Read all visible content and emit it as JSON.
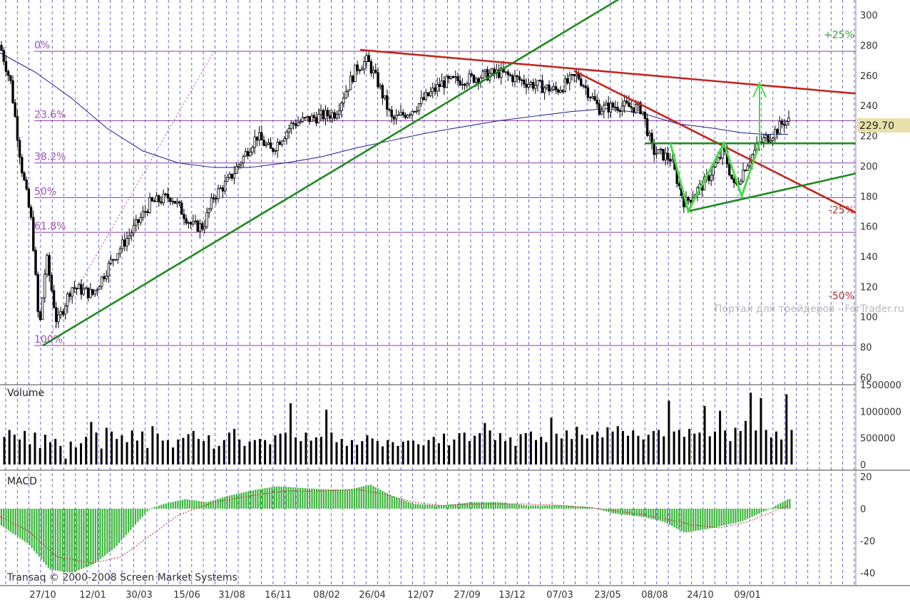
{
  "chart_data": {
    "type": "candlestick",
    "price_panel": {
      "ylim": [
        55,
        310
      ],
      "y_ticks": [
        60,
        80,
        100,
        120,
        140,
        160,
        180,
        200,
        220,
        240,
        260,
        280,
        300
      ],
      "last_price_label": "229.70",
      "fib_levels": [
        {
          "label": "0%",
          "value": 276
        },
        {
          "label": "23.6%",
          "value": 230
        },
        {
          "label": "38.2%",
          "value": 202
        },
        {
          "label": "50%",
          "value": 179
        },
        {
          "label": "61.8%",
          "value": 156
        },
        {
          "label": "100%",
          "value": 81
        }
      ],
      "percent_labels": [
        {
          "label": "+25%",
          "value": 287,
          "color": "#3aa03a"
        },
        {
          "label": "-25%",
          "value": 171,
          "color": "#b03030"
        },
        {
          "label": "-50%",
          "value": 114,
          "color": "#b03030"
        }
      ],
      "watermark": "Портал для трейдеров - ForTrader.ru",
      "close_series": [
        {
          "t": 0,
          "c": 280
        },
        {
          "t": 15,
          "c": 255
        },
        {
          "t": 30,
          "c": 200
        },
        {
          "t": 45,
          "c": 160
        },
        {
          "t": 55,
          "c": 90
        },
        {
          "t": 65,
          "c": 140
        },
        {
          "t": 80,
          "c": 95
        },
        {
          "t": 100,
          "c": 120
        },
        {
          "t": 130,
          "c": 115
        },
        {
          "t": 160,
          "c": 140
        },
        {
          "t": 190,
          "c": 160
        },
        {
          "t": 210,
          "c": 175
        },
        {
          "t": 240,
          "c": 180
        },
        {
          "t": 270,
          "c": 160
        },
        {
          "t": 285,
          "c": 160
        },
        {
          "t": 300,
          "c": 180
        },
        {
          "t": 320,
          "c": 190
        },
        {
          "t": 340,
          "c": 205
        },
        {
          "t": 360,
          "c": 220
        },
        {
          "t": 380,
          "c": 210
        },
        {
          "t": 410,
          "c": 228
        },
        {
          "t": 440,
          "c": 232
        },
        {
          "t": 470,
          "c": 235
        },
        {
          "t": 500,
          "c": 265
        },
        {
          "t": 515,
          "c": 270
        },
        {
          "t": 530,
          "c": 255
        },
        {
          "t": 550,
          "c": 230
        },
        {
          "t": 580,
          "c": 238
        },
        {
          "t": 620,
          "c": 255
        },
        {
          "t": 660,
          "c": 258
        },
        {
          "t": 700,
          "c": 262
        },
        {
          "t": 740,
          "c": 255
        },
        {
          "t": 780,
          "c": 250
        },
        {
          "t": 810,
          "c": 260
        },
        {
          "t": 840,
          "c": 238
        },
        {
          "t": 870,
          "c": 240
        },
        {
          "t": 900,
          "c": 238
        },
        {
          "t": 915,
          "c": 210
        },
        {
          "t": 940,
          "c": 205
        },
        {
          "t": 960,
          "c": 175
        },
        {
          "t": 990,
          "c": 190
        },
        {
          "t": 1015,
          "c": 210
        },
        {
          "t": 1030,
          "c": 185
        },
        {
          "t": 1045,
          "c": 200
        },
        {
          "t": 1065,
          "c": 215
        },
        {
          "t": 1085,
          "c": 222
        },
        {
          "t": 1100,
          "c": 229.7
        }
      ],
      "ma_series": [
        {
          "t": 0,
          "v": 275
        },
        {
          "t": 50,
          "v": 262
        },
        {
          "t": 100,
          "v": 245
        },
        {
          "t": 150,
          "v": 225
        },
        {
          "t": 200,
          "v": 210
        },
        {
          "t": 250,
          "v": 202
        },
        {
          "t": 300,
          "v": 199
        },
        {
          "t": 350,
          "v": 199
        },
        {
          "t": 400,
          "v": 202
        },
        {
          "t": 450,
          "v": 206
        },
        {
          "t": 500,
          "v": 212
        },
        {
          "t": 550,
          "v": 217
        },
        {
          "t": 600,
          "v": 222
        },
        {
          "t": 650,
          "v": 226
        },
        {
          "t": 700,
          "v": 230
        },
        {
          "t": 750,
          "v": 233
        },
        {
          "t": 800,
          "v": 236
        },
        {
          "t": 850,
          "v": 238
        },
        {
          "t": 900,
          "v": 235
        },
        {
          "t": 950,
          "v": 228
        },
        {
          "t": 1000,
          "v": 225
        },
        {
          "t": 1040,
          "v": 222
        },
        {
          "t": 1070,
          "v": 221
        },
        {
          "t": 1105,
          "v": 221
        }
      ],
      "trendlines": [
        {
          "color": "#1e8a1e",
          "points": [
            [
              60,
              81
            ],
            [
              880,
              314
            ]
          ]
        },
        {
          "color": "#c0281e",
          "points": [
            [
              505,
              277
            ],
            [
              1200,
              248
            ]
          ]
        },
        {
          "color": "#c0281e",
          "points": [
            [
              805,
              263
            ],
            [
              1200,
              169
            ]
          ]
        },
        {
          "color": "#1e8a1e",
          "points": [
            [
              965,
              170
            ],
            [
              1200,
              195
            ]
          ]
        },
        {
          "color": "#1e8a1e",
          "points": [
            [
              905,
              215
            ],
            [
              1200,
              215
            ]
          ]
        }
      ],
      "pattern": [
        [
          940,
          215
        ],
        [
          965,
          170
        ],
        [
          1015,
          215
        ],
        [
          1040,
          180
        ],
        [
          1065,
          215
        ]
      ],
      "target_arrow": [
        [
          1065,
          215
        ],
        [
          1065,
          255
        ]
      ]
    },
    "volume_panel": {
      "label": "Volume",
      "ylim": [
        0,
        1500000
      ],
      "y_ticks": [
        0,
        500000,
        1000000,
        1500000
      ],
      "values": [
        520000,
        650000,
        560000,
        470000,
        630000,
        380000,
        600000,
        310000,
        560000,
        420000,
        480000,
        350000,
        110000,
        430000,
        320000,
        400000,
        520000,
        800000,
        600000,
        300000,
        690000,
        620000,
        480000,
        550000,
        420000,
        640000,
        450000,
        620000,
        310000,
        720000,
        580000,
        450000,
        460000,
        320000,
        470000,
        500000,
        570000,
        630000,
        480000,
        440000,
        550000,
        300000,
        350000,
        460000,
        600000,
        670000,
        470000,
        350000,
        430000,
        460000,
        480000,
        460000,
        380000,
        550000,
        580000,
        600000,
        1150000,
        510000,
        440000,
        600000,
        450000,
        510000,
        520000,
        1030000,
        600000,
        420000,
        480000,
        350000,
        460000,
        370000,
        440000,
        550000,
        490000,
        440000,
        340000,
        460000,
        420000,
        350000,
        430000,
        450000,
        450000,
        380000,
        360000,
        460000,
        520000,
        400000,
        580000,
        360000,
        470000,
        590000,
        600000,
        440000,
        540000,
        590000,
        780000,
        640000,
        460000,
        590000,
        440000,
        510000,
        350000,
        570000,
        590000,
        620000,
        460000,
        520000,
        420000,
        880000,
        580000,
        490000,
        640000,
        480000,
        710000,
        560000,
        490000,
        560000,
        620000,
        510000,
        700000,
        620000,
        720000,
        630000,
        540000,
        640000,
        540000,
        470000,
        560000,
        630000,
        650000,
        530000,
        1200000,
        620000,
        650000,
        520000,
        670000,
        580000,
        600000,
        1100000,
        530000,
        620000,
        1010000,
        640000,
        440000,
        690000,
        630000,
        820000,
        1350000,
        640000,
        1250000,
        650000,
        510000,
        620000,
        470000,
        1320000,
        650000
      ]
    },
    "macd_panel": {
      "label": "MACD",
      "ylim": [
        -48,
        24
      ],
      "y_ticks": [
        -40,
        -20,
        0,
        20
      ],
      "hist": [
        [
          0,
          -10
        ],
        [
          40,
          -22
        ],
        [
          70,
          -38
        ],
        [
          100,
          -40
        ],
        [
          130,
          -35
        ],
        [
          160,
          -25
        ],
        [
          190,
          -10
        ],
        [
          210,
          0
        ],
        [
          230,
          3
        ],
        [
          260,
          6
        ],
        [
          290,
          4
        ],
        [
          320,
          8
        ],
        [
          360,
          12
        ],
        [
          390,
          14
        ],
        [
          420,
          13
        ],
        [
          460,
          12
        ],
        [
          490,
          12
        ],
        [
          520,
          15
        ],
        [
          550,
          8
        ],
        [
          580,
          3
        ],
        [
          620,
          2
        ],
        [
          660,
          4
        ],
        [
          700,
          4
        ],
        [
          740,
          2
        ],
        [
          790,
          2
        ],
        [
          830,
          1
        ],
        [
          860,
          -3
        ],
        [
          900,
          -5
        ],
        [
          930,
          -8
        ],
        [
          960,
          -15
        ],
        [
          1000,
          -12
        ],
        [
          1040,
          -8
        ],
        [
          1080,
          0
        ],
        [
          1105,
          6
        ]
      ],
      "signal": [
        [
          0,
          -5
        ],
        [
          40,
          -14
        ],
        [
          80,
          -30
        ],
        [
          130,
          -34
        ],
        [
          170,
          -30
        ],
        [
          210,
          -17
        ],
        [
          250,
          -4
        ],
        [
          300,
          4
        ],
        [
          350,
          8
        ],
        [
          400,
          11
        ],
        [
          450,
          11
        ],
        [
          500,
          12
        ],
        [
          540,
          9
        ],
        [
          580,
          4
        ],
        [
          620,
          2
        ],
        [
          680,
          3
        ],
        [
          730,
          3
        ],
        [
          790,
          2
        ],
        [
          840,
          0
        ],
        [
          890,
          -3
        ],
        [
          930,
          -6
        ],
        [
          970,
          -10
        ],
        [
          1010,
          -12
        ],
        [
          1050,
          -8
        ],
        [
          1105,
          2
        ]
      ]
    },
    "x_axis": {
      "tick_labels": [
        "27/10",
        "12/01",
        "30/03",
        "15/06",
        "31/08",
        "16/11",
        "08/02",
        "26/04",
        "12/07",
        "27/09",
        "13/12",
        "07/03",
        "23/05",
        "08/08",
        "24/10",
        "09/01"
      ],
      "tick_t": [
        60,
        130,
        195,
        262,
        325,
        390,
        458,
        522,
        590,
        655,
        718,
        785,
        852,
        918,
        982,
        1048
      ]
    },
    "copyright": "Transaq © 2000-2008 Screen Market Systems"
  }
}
